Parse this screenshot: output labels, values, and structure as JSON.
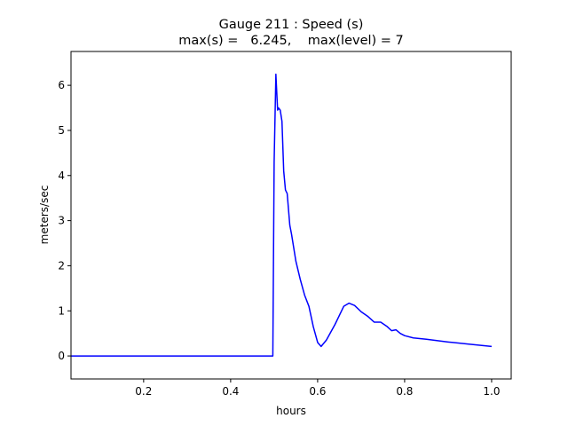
{
  "chart_data": {
    "type": "line",
    "title": "Gauge 211 : Speed (s)",
    "subtitle": "max(s) =   6.245,    max(level) = 7",
    "xlabel": "hours",
    "ylabel": "meters/sec",
    "x": [
      0.033,
      0.497,
      0.5,
      0.504,
      0.508,
      0.51,
      0.514,
      0.518,
      0.522,
      0.526,
      0.53,
      0.536,
      0.54,
      0.55,
      0.56,
      0.57,
      0.58,
      0.59,
      0.6,
      0.608,
      0.62,
      0.64,
      0.66,
      0.672,
      0.685,
      0.7,
      0.715,
      0.73,
      0.745,
      0.76,
      0.77,
      0.78,
      0.79,
      0.8,
      0.82,
      0.85,
      0.9,
      0.95,
      1.0
    ],
    "series": [
      {
        "name": "s",
        "color": "#0000ff",
        "values": [
          0,
          0,
          4.3,
          6.245,
          5.45,
          5.5,
          5.45,
          5.2,
          4.1,
          3.68,
          3.6,
          2.9,
          2.7,
          2.1,
          1.7,
          1.35,
          1.1,
          0.65,
          0.3,
          0.21,
          0.35,
          0.7,
          1.1,
          1.17,
          1.12,
          0.98,
          0.88,
          0.75,
          0.75,
          0.65,
          0.56,
          0.58,
          0.5,
          0.45,
          0.4,
          0.37,
          0.31,
          0.26,
          0.21
        ]
      }
    ],
    "xlim": [
      0.033,
      1.045
    ],
    "ylim": [
      -0.51,
      6.75
    ],
    "xticks": [
      0.2,
      0.4,
      0.6,
      0.8,
      {
        "value": 1.0,
        "label": "1.0"
      }
    ],
    "yticks": [
      0,
      1,
      2,
      3,
      4,
      5,
      6
    ],
    "grid": false
  }
}
